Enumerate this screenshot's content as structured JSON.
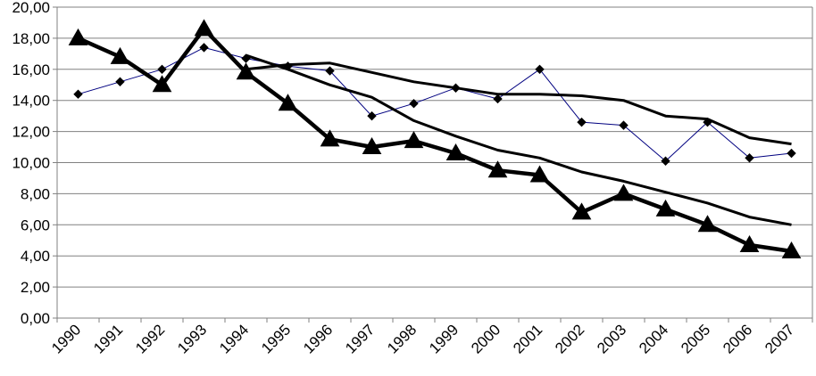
{
  "chart_data": {
    "type": "line",
    "title": "",
    "xlabel": "",
    "ylabel": "",
    "ylim": [
      0,
      20
    ],
    "ytick_step": 2,
    "ytick_labels": [
      "0,00",
      "2,00",
      "4,00",
      "6,00",
      "8,00",
      "10,00",
      "12,00",
      "14,00",
      "16,00",
      "18,00",
      "20,00"
    ],
    "categories": [
      "1990",
      "1991",
      "1992",
      "1993",
      "1994",
      "1995",
      "1996",
      "1997",
      "1998",
      "1999",
      "2000",
      "2001",
      "2002",
      "2003",
      "2004",
      "2005",
      "2006",
      "2007"
    ],
    "grid": true,
    "legend": "none",
    "series": [
      {
        "style": "thin-diamond",
        "color": "#000080",
        "marker_color": "#000000",
        "values": [
          14.4,
          15.2,
          16.0,
          17.4,
          16.7,
          16.2,
          15.9,
          13.0,
          13.8,
          14.8,
          14.1,
          16.0,
          12.6,
          12.4,
          10.1,
          12.6,
          10.3,
          10.6
        ]
      },
      {
        "style": "thick-triangle",
        "color": "#000000",
        "values": [
          18.0,
          16.8,
          15.0,
          18.6,
          15.8,
          13.8,
          11.5,
          11.0,
          11.4,
          10.6,
          9.5,
          9.2,
          6.8,
          8.0,
          7.0,
          6.0,
          4.7,
          4.3
        ]
      },
      {
        "style": "smooth-upper",
        "color": "#000000",
        "values": [
          null,
          null,
          null,
          null,
          16.0,
          16.3,
          16.4,
          15.8,
          15.2,
          14.8,
          14.4,
          14.4,
          14.3,
          14.0,
          13.0,
          12.8,
          11.6,
          11.2
        ]
      },
      {
        "style": "smooth-lower",
        "color": "#000000",
        "values": [
          null,
          null,
          null,
          null,
          16.9,
          16.0,
          15.0,
          14.2,
          12.7,
          11.7,
          10.8,
          10.3,
          9.4,
          8.8,
          8.1,
          7.4,
          6.5,
          6.0
        ]
      }
    ]
  }
}
